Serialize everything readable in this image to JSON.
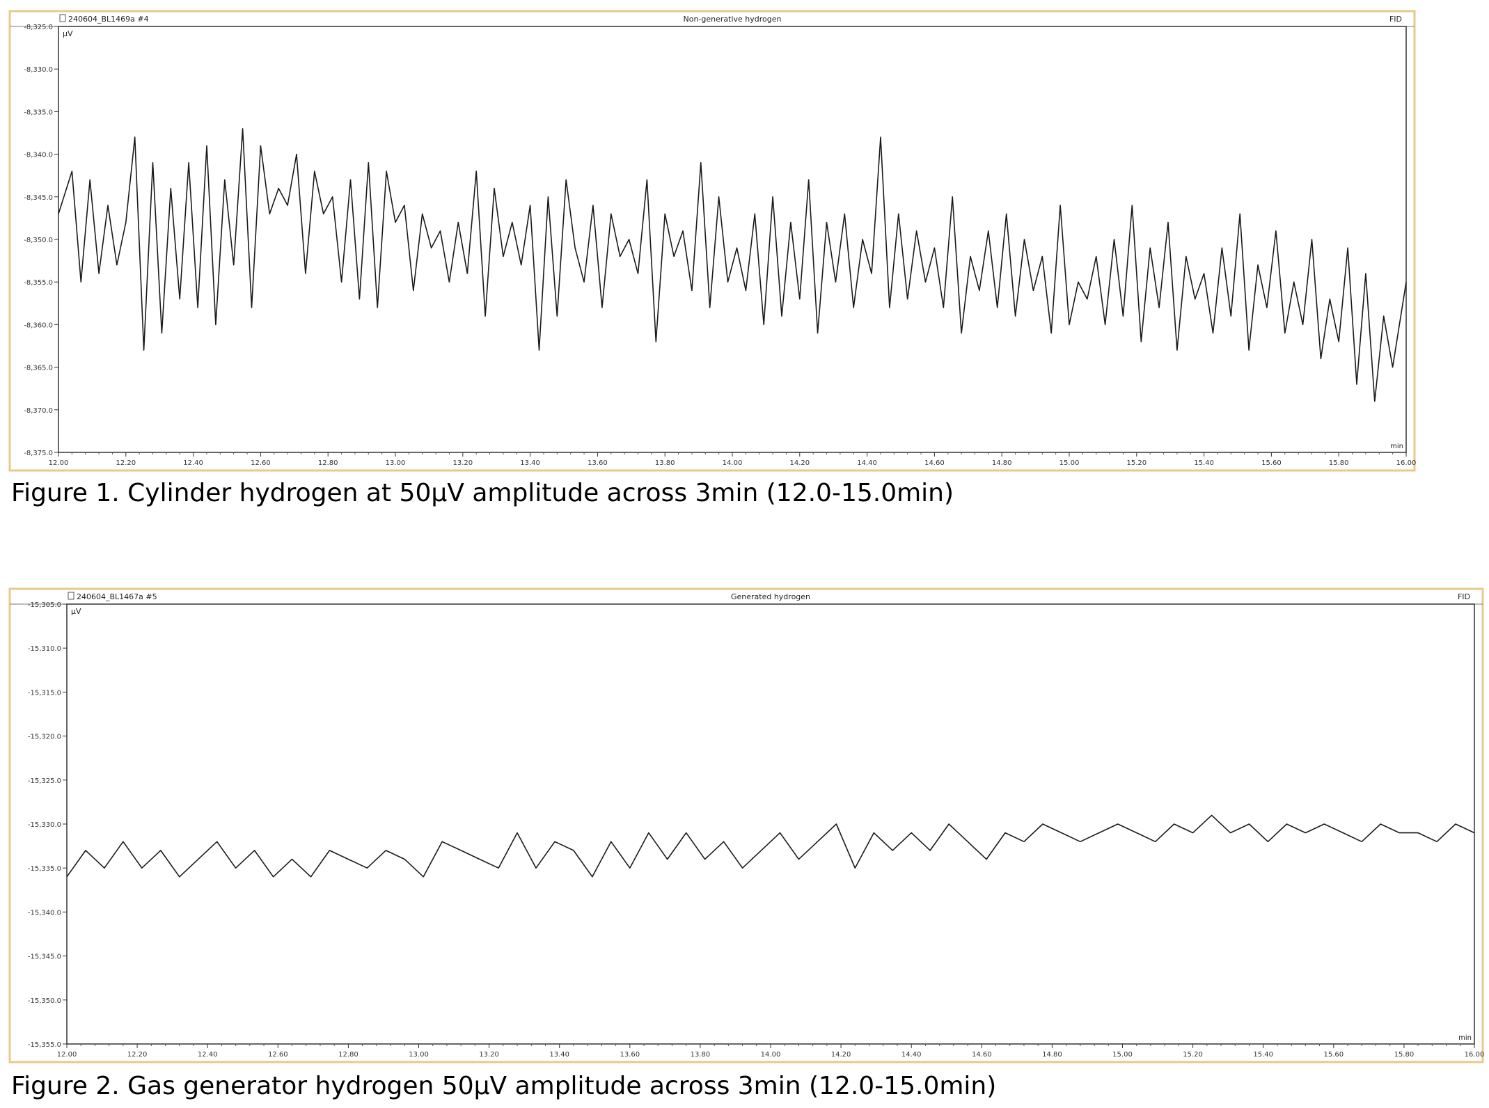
{
  "chart_data": [
    {
      "type": "line",
      "header_left": "240604_BL1469a #4",
      "title": "Non-generative hydrogen",
      "detector": "FID",
      "ylabel": "µV",
      "xlabel": "min",
      "xlim": [
        12.0,
        15.0
      ],
      "ylim": [
        -8375.0,
        -8325.0
      ],
      "x_ticks": [
        "12.00",
        "12.20",
        "12.40",
        "12.60",
        "12.80",
        "13.00",
        "13.20",
        "13.40",
        "13.60",
        "13.80",
        "14.00",
        "14.20",
        "14.40",
        "14.60",
        "14.80",
        "15.00",
        "15.20",
        "15.40",
        "15.60",
        "15.80",
        "16.00"
      ],
      "y_ticks": [
        "-8,325.0",
        "-8,330.0",
        "-8,335.0",
        "-8,340.0",
        "-8,345.0",
        "-8,350.0",
        "-8,355.0",
        "-8,360.0",
        "-8,365.0",
        "-8,370.0",
        "-8,375.0"
      ],
      "series": [
        {
          "x": [
            12.0,
            12.03,
            12.05,
            12.07,
            12.09,
            12.11,
            12.13,
            12.15,
            12.17,
            12.19,
            12.21,
            12.23,
            12.25,
            12.27,
            12.29,
            12.31,
            12.33,
            12.35,
            12.37,
            12.39,
            12.41,
            12.43,
            12.45,
            12.47,
            12.49,
            12.51,
            12.53,
            12.55,
            12.57,
            12.59,
            12.61,
            12.63,
            12.65,
            12.67,
            12.69,
            12.71,
            12.73,
            12.75,
            12.77,
            12.79,
            12.81,
            12.83,
            12.85,
            12.87,
            12.89,
            12.91,
            12.93,
            12.95,
            12.97,
            12.99,
            13.01,
            13.03,
            13.05,
            13.07,
            13.09,
            13.11,
            13.13,
            13.15,
            13.17,
            13.19,
            13.21,
            13.23,
            13.25,
            13.27,
            13.29,
            13.31,
            13.33,
            13.35,
            13.37,
            13.39,
            13.41,
            13.43,
            13.45,
            13.47,
            13.49,
            13.51,
            13.53,
            13.55,
            13.57,
            13.59,
            13.61,
            13.63,
            13.65,
            13.67,
            13.69,
            13.71,
            13.73,
            13.75,
            13.77,
            13.79,
            13.81,
            13.83,
            13.85,
            13.87,
            13.89,
            13.91,
            13.93,
            13.95,
            13.97,
            13.99,
            14.01,
            14.03,
            14.05,
            14.07,
            14.09,
            14.11,
            14.13,
            14.15,
            14.17,
            14.19,
            14.21,
            14.23,
            14.25,
            14.27,
            14.29,
            14.31,
            14.33,
            14.35,
            14.37,
            14.39,
            14.41,
            14.43,
            14.45,
            14.47,
            14.49,
            14.51,
            14.53,
            14.55,
            14.57,
            14.59,
            14.61,
            14.63,
            14.65,
            14.67,
            14.69,
            14.71,
            14.73,
            14.75,
            14.77,
            14.79,
            14.81,
            14.83,
            14.85,
            14.87,
            14.89,
            14.91,
            14.93,
            14.95,
            14.97,
            15.0
          ],
          "y": [
            -8347,
            -8342,
            -8355,
            -8343,
            -8354,
            -8346,
            -8353,
            -8348,
            -8338,
            -8363,
            -8341,
            -8361,
            -8344,
            -8357,
            -8341,
            -8358,
            -8339,
            -8360,
            -8343,
            -8353,
            -8337,
            -8358,
            -8339,
            -8347,
            -8344,
            -8346,
            -8340,
            -8354,
            -8342,
            -8347,
            -8345,
            -8355,
            -8343,
            -8357,
            -8341,
            -8358,
            -8342,
            -8348,
            -8346,
            -8356,
            -8347,
            -8351,
            -8349,
            -8355,
            -8348,
            -8354,
            -8342,
            -8359,
            -8344,
            -8352,
            -8348,
            -8353,
            -8346,
            -8363,
            -8345,
            -8359,
            -8343,
            -8351,
            -8355,
            -8346,
            -8358,
            -8347,
            -8352,
            -8350,
            -8354,
            -8343,
            -8362,
            -8347,
            -8352,
            -8349,
            -8356,
            -8341,
            -8358,
            -8345,
            -8355,
            -8351,
            -8356,
            -8347,
            -8360,
            -8345,
            -8359,
            -8348,
            -8357,
            -8343,
            -8361,
            -8348,
            -8355,
            -8347,
            -8358,
            -8350,
            -8354,
            -8338,
            -8358,
            -8347,
            -8357,
            -8349,
            -8355,
            -8351,
            -8358,
            -8345,
            -8361,
            -8352,
            -8356,
            -8349,
            -8358,
            -8347,
            -8359,
            -8350,
            -8356,
            -8352,
            -8361,
            -8346,
            -8360,
            -8355,
            -8357,
            -8352,
            -8360,
            -8350,
            -8359,
            -8346,
            -8362,
            -8351,
            -8358,
            -8348,
            -8363,
            -8352,
            -8357,
            -8354,
            -8361,
            -8351,
            -8359,
            -8347,
            -8363,
            -8353,
            -8358,
            -8349,
            -8361,
            -8355,
            -8360,
            -8350,
            -8364,
            -8357,
            -8362,
            -8351,
            -8367,
            -8354,
            -8369,
            -8359,
            -8365,
            -8355
          ]
        }
      ]
    },
    {
      "type": "line",
      "header_left": "240604_BL1467a #5",
      "title": "Generated hydrogen",
      "detector": "FID",
      "ylabel": "µV",
      "xlabel": "min",
      "xlim": [
        12.0,
        15.0
      ],
      "ylim": [
        -15355.0,
        -15305.0
      ],
      "x_ticks": [
        "12.00",
        "12.20",
        "12.40",
        "12.60",
        "12.80",
        "13.00",
        "13.20",
        "13.40",
        "13.60",
        "13.80",
        "14.00",
        "14.20",
        "14.40",
        "14.60",
        "14.80",
        "15.00",
        "15.20",
        "15.40",
        "15.60",
        "15.80",
        "16.00"
      ],
      "y_ticks": [
        "-15,305.0",
        "-15,310.0",
        "-15,315.0",
        "-15,320.0",
        "-15,325.0",
        "-15,330.0",
        "-15,335.0",
        "-15,340.0",
        "-15,345.0",
        "-15,350.0",
        "-15,355.0"
      ],
      "series": [
        {
          "x": [
            12.0,
            12.04,
            12.08,
            12.12,
            12.16,
            12.2,
            12.24,
            12.28,
            12.32,
            12.36,
            12.4,
            12.44,
            12.48,
            12.52,
            12.56,
            12.6,
            12.64,
            12.68,
            12.72,
            12.76,
            12.8,
            12.84,
            12.88,
            12.92,
            12.96,
            13.0,
            13.04,
            13.08,
            13.12,
            13.16,
            13.2,
            13.24,
            13.28,
            13.32,
            13.36,
            13.4,
            13.44,
            13.48,
            13.52,
            13.56,
            13.6,
            13.64,
            13.68,
            13.72,
            13.76,
            13.8,
            13.84,
            13.88,
            13.92,
            13.96,
            14.0,
            14.04,
            14.08,
            14.12,
            14.16,
            14.2,
            14.24,
            14.28,
            14.32,
            14.36,
            14.4,
            14.44,
            14.48,
            14.52,
            14.56,
            14.6,
            14.64,
            14.68,
            14.72,
            14.76,
            14.8,
            14.84,
            14.88,
            14.92,
            14.96,
            15.0
          ],
          "y": [
            -15336,
            -15333,
            -15335,
            -15332,
            -15335,
            -15333,
            -15336,
            -15334,
            -15332,
            -15335,
            -15333,
            -15336,
            -15334,
            -15336,
            -15333,
            -15334,
            -15335,
            -15333,
            -15334,
            -15336,
            -15332,
            -15333,
            -15334,
            -15335,
            -15331,
            -15335,
            -15332,
            -15333,
            -15336,
            -15332,
            -15335,
            -15331,
            -15334,
            -15331,
            -15334,
            -15332,
            -15335,
            -15333,
            -15331,
            -15334,
            -15332,
            -15330,
            -15335,
            -15331,
            -15333,
            -15331,
            -15333,
            -15330,
            -15332,
            -15334,
            -15331,
            -15332,
            -15330,
            -15331,
            -15332,
            -15331,
            -15330,
            -15331,
            -15332,
            -15330,
            -15331,
            -15329,
            -15331,
            -15330,
            -15332,
            -15330,
            -15331,
            -15330,
            -15331,
            -15332,
            -15330,
            -15331,
            -15331,
            -15332,
            -15330,
            -15331
          ]
        }
      ]
    }
  ],
  "captions": [
    "Figure 1. Cylinder hydrogen at 50µV amplitude across 3min (12.0-15.0min)",
    "Figure 2. Gas generator hydrogen 50µV amplitude across 3min (12.0-15.0min)"
  ]
}
